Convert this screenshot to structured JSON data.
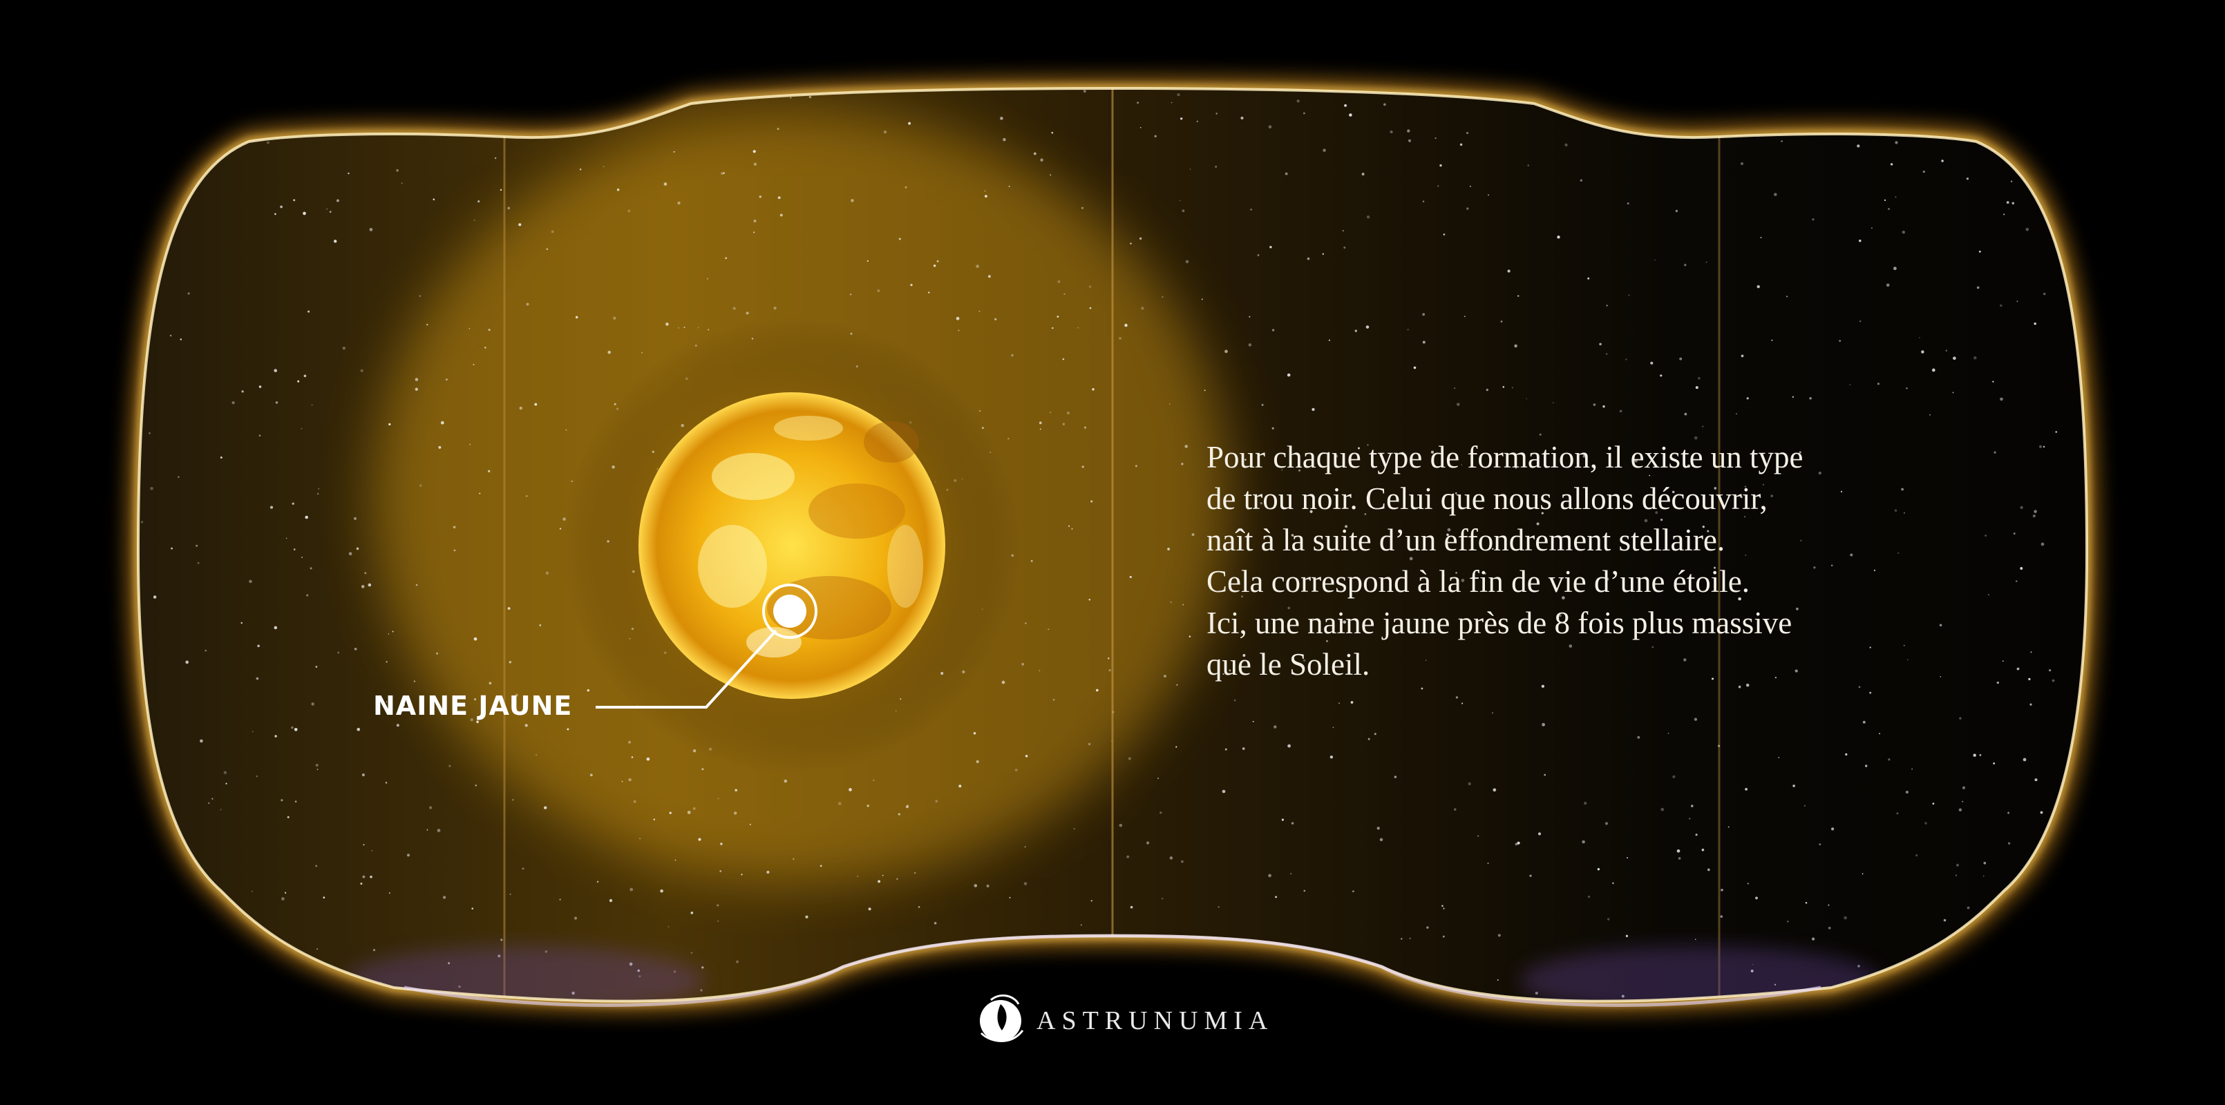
{
  "marker": {
    "label": "NAINE JAUNE"
  },
  "description": {
    "lines": [
      "Pour chaque type de formation, il existe un type",
      "de trou noir. Celui que nous allons découvrir,",
      "naît à la suite d’un effondrement stellaire.",
      "Cela correspond à la fin de vie d’une étoile.",
      "Ici, une naine jaune près de 8 fois plus massive",
      "que le Soleil."
    ]
  },
  "brand": {
    "name": "ASTRUNUMIA",
    "logo_icon": "astrunumia-logo-icon"
  },
  "colors": {
    "background": "#000000",
    "frame_glow": "#f0a020",
    "frame_rim": "#fff0c0",
    "star_core": "#ffd23a",
    "text": "#f4f0e6"
  }
}
